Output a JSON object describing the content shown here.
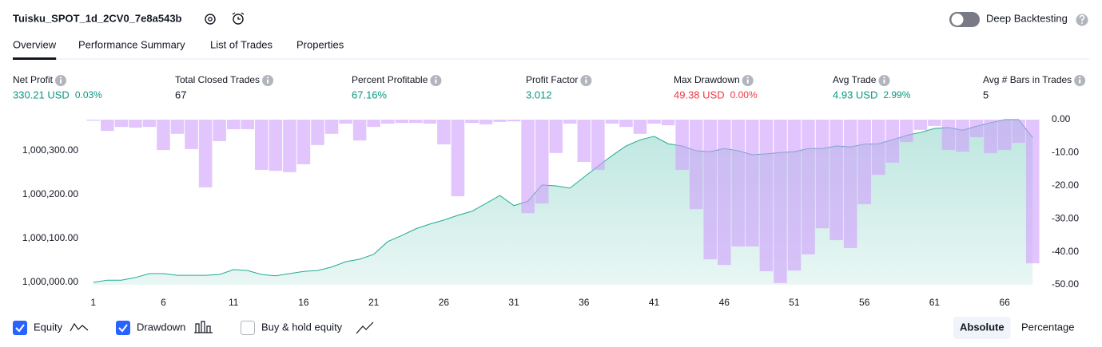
{
  "header": {
    "title": "Tuisku_SPOT_1d_2CV0_7e8a543b",
    "toggle": {
      "label": "Deep Backtesting",
      "on": false
    }
  },
  "tabs": {
    "items": [
      "Overview",
      "Performance Summary",
      "List of Trades",
      "Properties"
    ],
    "active": 0
  },
  "stats": [
    {
      "label": "Net Profit",
      "value": "330.21 USD",
      "change": "0.03%",
      "color": "#089981"
    },
    {
      "label": "Total Closed Trades",
      "value": "67",
      "color": "#131722"
    },
    {
      "label": "Percent Profitable",
      "value": "67.16%",
      "color": "#089981"
    },
    {
      "label": "Profit Factor",
      "value": "3.012",
      "color": "#089981"
    },
    {
      "label": "Max Drawdown",
      "value": "49.38 USD",
      "change": "0.00%",
      "color": "#f23645"
    },
    {
      "label": "Avg Trade",
      "value": "4.93 USD",
      "change": "2.99%",
      "color": "#089981"
    },
    {
      "label": "Avg # Bars in Trades",
      "value": "5",
      "color": "#131722"
    }
  ],
  "chart_data": {
    "type": "combo",
    "x": [
      1,
      2,
      3,
      4,
      5,
      6,
      7,
      8,
      9,
      10,
      11,
      12,
      13,
      14,
      15,
      16,
      17,
      18,
      19,
      20,
      21,
      22,
      23,
      24,
      25,
      26,
      27,
      28,
      29,
      30,
      31,
      32,
      33,
      34,
      35,
      36,
      37,
      38,
      39,
      40,
      41,
      42,
      43,
      44,
      45,
      46,
      47,
      48,
      49,
      50,
      51,
      52,
      53,
      54,
      55,
      56,
      57,
      58,
      59,
      60,
      61,
      62,
      63,
      64,
      65,
      66,
      67,
      68
    ],
    "xlim": [
      0.5,
      68.5
    ],
    "xticks": [
      1,
      6,
      11,
      16,
      21,
      26,
      31,
      36,
      41,
      46,
      51,
      56,
      61,
      66
    ],
    "ylim": [
      999994.5,
      1000371
    ],
    "yticks": [
      {
        "value": 1000000,
        "label": "1,000,000.00"
      },
      {
        "value": 1000100,
        "label": "1,000,100.00"
      },
      {
        "value": 1000200,
        "label": "1,000,200.00"
      },
      {
        "value": 1000300,
        "label": "1,000,300.00"
      }
    ],
    "y2lim": [
      -50,
      0
    ],
    "y2ticks": [
      {
        "value": 0,
        "label": "0.00"
      },
      {
        "value": -10,
        "label": "-10.00"
      },
      {
        "value": -20,
        "label": "-20.00"
      },
      {
        "value": -30,
        "label": "-30.00"
      },
      {
        "value": -40,
        "label": "-40.00"
      },
      {
        "value": -50,
        "label": "-50.00"
      }
    ],
    "series": [
      {
        "name": "Equity",
        "type": "area",
        "color": "#22ab94",
        "visible": true,
        "values": [
          1000000,
          1000005,
          1000005,
          1000011,
          1000020,
          1000020,
          1000016,
          1000016,
          1000016,
          1000018,
          1000029,
          1000027,
          1000018,
          1000015,
          1000020,
          1000025,
          1000027,
          1000035,
          1000047,
          1000053,
          1000064,
          1000093,
          1000107,
          1000122,
          1000133,
          1000142,
          1000153,
          1000162,
          1000180,
          1000198,
          1000175,
          1000185,
          1000222,
          1000220,
          1000215,
          1000240,
          1000265,
          1000289,
          1000311,
          1000325,
          1000333,
          1000316,
          1000311,
          1000300,
          1000298,
          1000305,
          1000300,
          1000291,
          1000293,
          1000296,
          1000298,
          1000305,
          1000305,
          1000311,
          1000309,
          1000315,
          1000316,
          1000325,
          1000335,
          1000342,
          1000351,
          1000353,
          1000347,
          1000356,
          1000364,
          1000371,
          1000371,
          1000330.21
        ]
      },
      {
        "name": "Drawdown",
        "type": "bar",
        "axis": "y2",
        "color": "#cf9ffb",
        "visible": true,
        "values": [
          -0.3,
          -3.4,
          -2.2,
          -2.4,
          -2.2,
          -9.2,
          -4.3,
          -8.9,
          -20.5,
          -6.5,
          -2.9,
          -2.9,
          -15.2,
          -15.5,
          -15.9,
          -13.5,
          -7.7,
          -4.3,
          -1.2,
          -6.3,
          -2.2,
          -1.2,
          -1.0,
          -1.0,
          -1.2,
          -7.5,
          -23.2,
          -1.0,
          -1.4,
          -0.7,
          -0.5,
          -28.3,
          -25.4,
          -10.1,
          -1.2,
          -12.8,
          -15.2,
          -1.2,
          -2.2,
          -4.3,
          -1.2,
          -1.7,
          -15.2,
          -27.1,
          -42.3,
          -44.0,
          -38.4,
          -38.4,
          -45.9,
          -49.5,
          -45.7,
          -40.8,
          -32.9,
          -36.5,
          -38.9,
          -25.6,
          -16.7,
          -13.0,
          -6.8,
          -3.1,
          -1.9,
          -9.2,
          -9.7,
          -5.3,
          -10.1,
          -9.2,
          -7.0,
          -43.5
        ]
      }
    ]
  },
  "toggles": [
    {
      "label": "Buy & hold equity",
      "checked": false
    }
  ],
  "scale_buttons": {
    "items": [
      "Absolute",
      "Percentage"
    ],
    "active": 0
  }
}
